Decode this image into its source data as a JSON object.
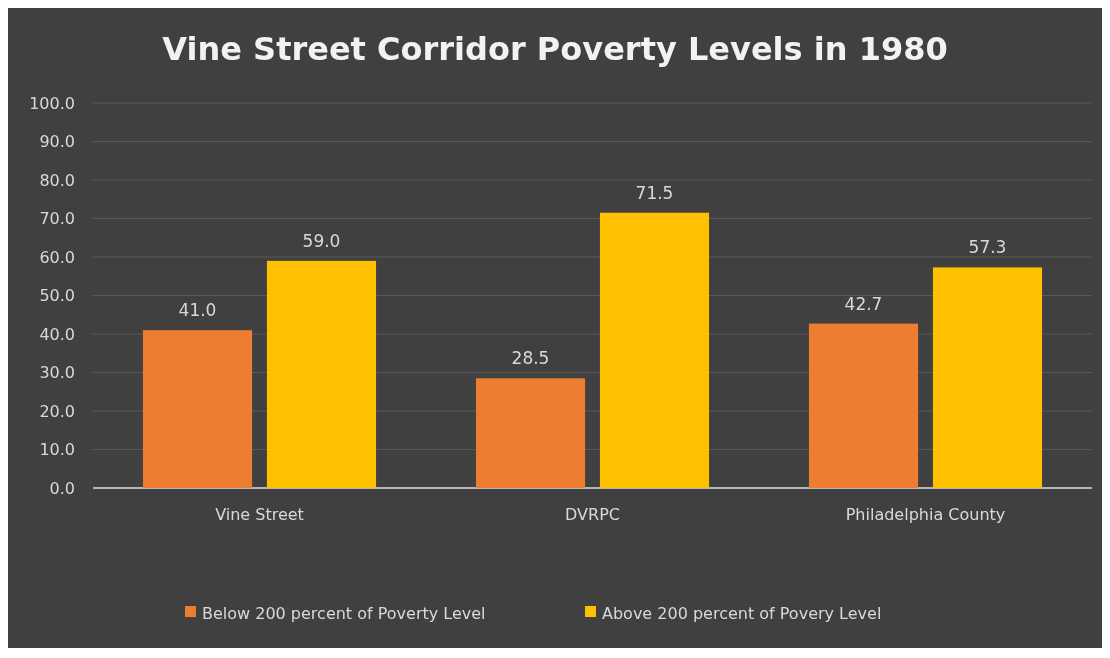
{
  "chart_data": {
    "type": "bar",
    "title": "Vine Street Corridor Poverty Levels in 1980",
    "categories": [
      "Vine Street",
      "DVRPC",
      "Philadelphia County"
    ],
    "series": [
      {
        "name": "Below 200 percent of Poverty Level",
        "color": "#ed7d31",
        "values": [
          41.0,
          28.5,
          42.7
        ],
        "value_labels": [
          "41.0",
          "28.5",
          "42.7"
        ]
      },
      {
        "name": "Above 200 percent of Povery Level",
        "color": "#ffc000",
        "values": [
          59.0,
          71.5,
          57.3
        ],
        "value_labels": [
          "59.0",
          "71.5",
          "57.3"
        ]
      }
    ],
    "ylim": [
      0,
      100
    ],
    "yticks": [
      {
        "value": 0,
        "label": "0.0"
      },
      {
        "value": 10,
        "label": "10.0"
      },
      {
        "value": 20,
        "label": "20.0"
      },
      {
        "value": 30,
        "label": "30.0"
      },
      {
        "value": 40,
        "label": "40.0"
      },
      {
        "value": 50,
        "label": "50.0"
      },
      {
        "value": 60,
        "label": "60.0"
      },
      {
        "value": 70,
        "label": "70.0"
      },
      {
        "value": 80,
        "label": "80.0"
      },
      {
        "value": 90,
        "label": "90.0"
      },
      {
        "value": 100,
        "label": "100.0"
      }
    ],
    "grid": "y",
    "legend": "bottom"
  }
}
